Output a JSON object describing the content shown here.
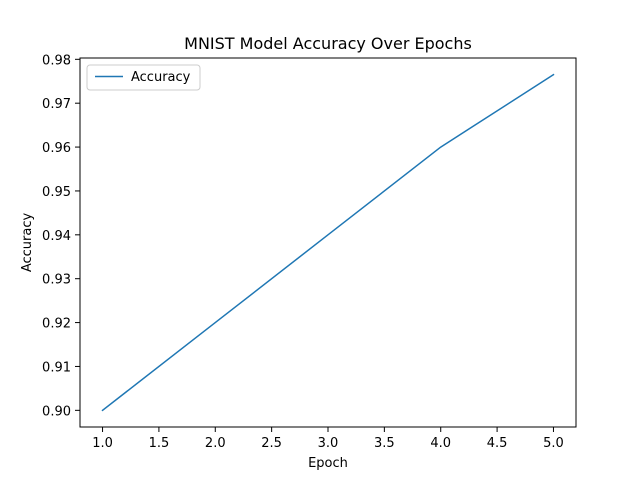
{
  "chart_data": {
    "type": "line",
    "title": "MNIST Model Accuracy Over Epochs",
    "xlabel": "Epoch",
    "ylabel": "Accuracy",
    "x": [
      1,
      2,
      3,
      4,
      5
    ],
    "series": [
      {
        "name": "Accuracy",
        "color": "#1f77b4",
        "values": [
          0.9,
          0.92,
          0.94,
          0.96,
          0.9765
        ]
      }
    ],
    "xlim": [
      0.8,
      5.2
    ],
    "ylim": [
      0.8962,
      0.9803
    ],
    "xticks": [
      1.0,
      1.5,
      2.0,
      2.5,
      3.0,
      3.5,
      4.0,
      4.5,
      5.0
    ],
    "xtick_labels": [
      "1.0",
      "1.5",
      "2.0",
      "2.5",
      "3.0",
      "3.5",
      "4.0",
      "4.5",
      "5.0"
    ],
    "yticks": [
      0.9,
      0.91,
      0.92,
      0.93,
      0.94,
      0.95,
      0.96,
      0.97,
      0.98
    ],
    "ytick_labels": [
      "0.90",
      "0.91",
      "0.92",
      "0.93",
      "0.94",
      "0.95",
      "0.96",
      "0.97",
      "0.98"
    ],
    "grid": false,
    "legend_position": "upper-left"
  }
}
